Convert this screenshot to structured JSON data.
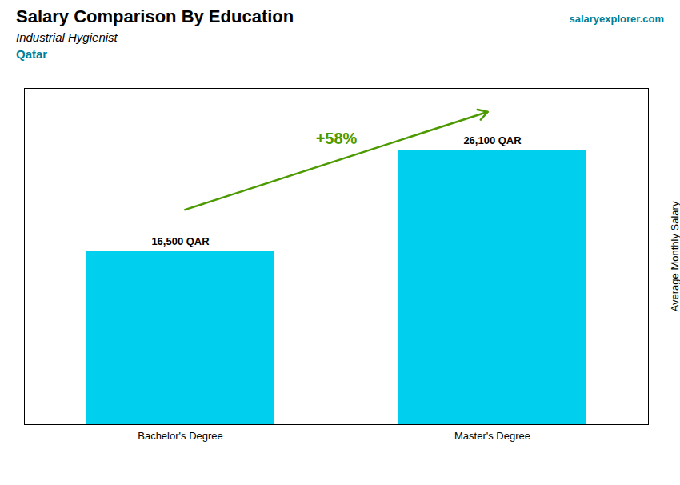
{
  "chart_data": {
    "type": "bar",
    "title": "Salary Comparison By Education",
    "subtitle": "Industrial Hygienist",
    "annotations": [
      "Qatar",
      "salaryexplorer.com",
      "+58%"
    ],
    "y_label": "Average Monthly Salary",
    "categories": [
      "Bachelor's Degree",
      "Master's Degree"
    ],
    "values": [
      16500,
      26100
    ],
    "value_labels": [
      "16,500 QAR",
      "26,100 QAR"
    ],
    "data_labels": true,
    "color": "#00CFED",
    "ylim": [
      0,
      32000
    ],
    "tick_labels": "x"
  }
}
